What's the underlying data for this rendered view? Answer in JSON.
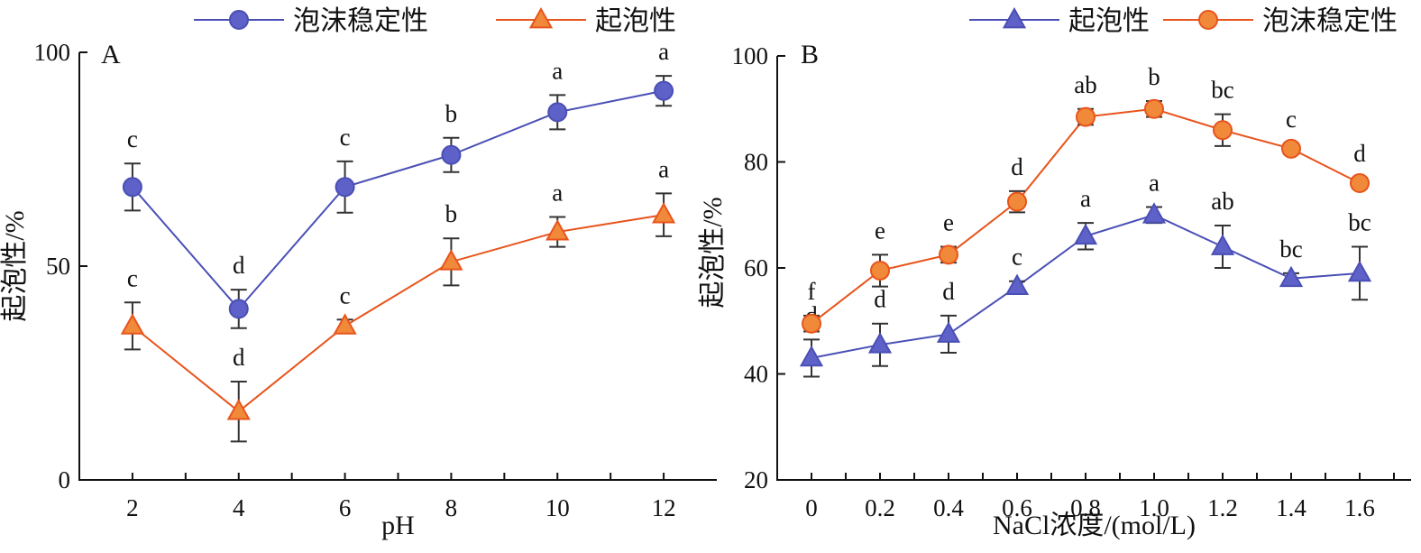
{
  "colors": {
    "purple_series": "#4a4fb5",
    "purple_fill": "#5e62c8",
    "orange_series": "#e8541c",
    "orange_fill": "#f08a3a"
  },
  "chart_data": [
    {
      "type": "line",
      "panel_label": "A",
      "xlabel": "pH",
      "ylabel": "起泡性/%",
      "x_ticks": [
        "2",
        "4",
        "6",
        "8",
        "10",
        "12"
      ],
      "y_ticks": [
        "0",
        "50",
        "100"
      ],
      "ylim": [
        0,
        100
      ],
      "grid": false,
      "legend_position": "top",
      "series": [
        {
          "name": "泡沫稳定性",
          "marker": "circle",
          "color": "purple",
          "x": [
            2,
            4,
            6,
            8,
            10,
            12
          ],
          "values": [
            68.5,
            40,
            68.5,
            76,
            86,
            91
          ],
          "errors": [
            5.5,
            4.5,
            6,
            4,
            4,
            3.5
          ],
          "labels": [
            "c",
            "d",
            "c",
            "b",
            "a",
            "a"
          ]
        },
        {
          "name": "起泡性",
          "marker": "triangle",
          "color": "orange",
          "x": [
            2,
            4,
            6,
            8,
            10,
            12
          ],
          "values": [
            36,
            16,
            36,
            51,
            58,
            62
          ],
          "errors": [
            5.5,
            7,
            1.5,
            5.5,
            3.5,
            5
          ],
          "labels": [
            "c",
            "d",
            "c",
            "b",
            "a",
            "a"
          ]
        }
      ]
    },
    {
      "type": "line",
      "panel_label": "B",
      "xlabel": "NaCl浓度/(mol/L)",
      "ylabel": "起泡性/%",
      "x_ticks": [
        "0",
        "0.2",
        "0.4",
        "0.6",
        "0.8",
        "1.0",
        "1.2",
        "1.4",
        "1.6"
      ],
      "y_ticks": [
        "20",
        "40",
        "60",
        "80",
        "100"
      ],
      "ylim": [
        20,
        100
      ],
      "grid": false,
      "legend_position": "top",
      "series": [
        {
          "name": "起泡性",
          "marker": "triangle",
          "color": "purple",
          "x": [
            0,
            0.2,
            0.4,
            0.6,
            0.8,
            1.0,
            1.2,
            1.4,
            1.6
          ],
          "values": [
            43,
            45.5,
            47.5,
            56.5,
            66,
            70,
            64,
            58,
            59
          ],
          "errors": [
            3.5,
            4,
            3.5,
            1,
            2.5,
            1.5,
            4,
            1,
            5
          ],
          "labels": [
            "d",
            "d",
            "d",
            "c",
            "a",
            "a",
            "ab",
            "bc",
            "bc"
          ]
        },
        {
          "name": "泡沫稳定性",
          "marker": "circle",
          "color": "orange",
          "x": [
            0,
            0.2,
            0.4,
            0.6,
            0.8,
            1.0,
            1.2,
            1.4,
            1.6
          ],
          "values": [
            49.5,
            59.5,
            62.5,
            72.5,
            88.5,
            90,
            86,
            82.5,
            76
          ],
          "errors": [
            1.5,
            3,
            1.5,
            2,
            1.5,
            1.5,
            3,
            1,
            1
          ],
          "labels": [
            "f",
            "e",
            "e",
            "d",
            "ab",
            "b",
            "bc",
            "c",
            "d"
          ]
        }
      ]
    }
  ]
}
